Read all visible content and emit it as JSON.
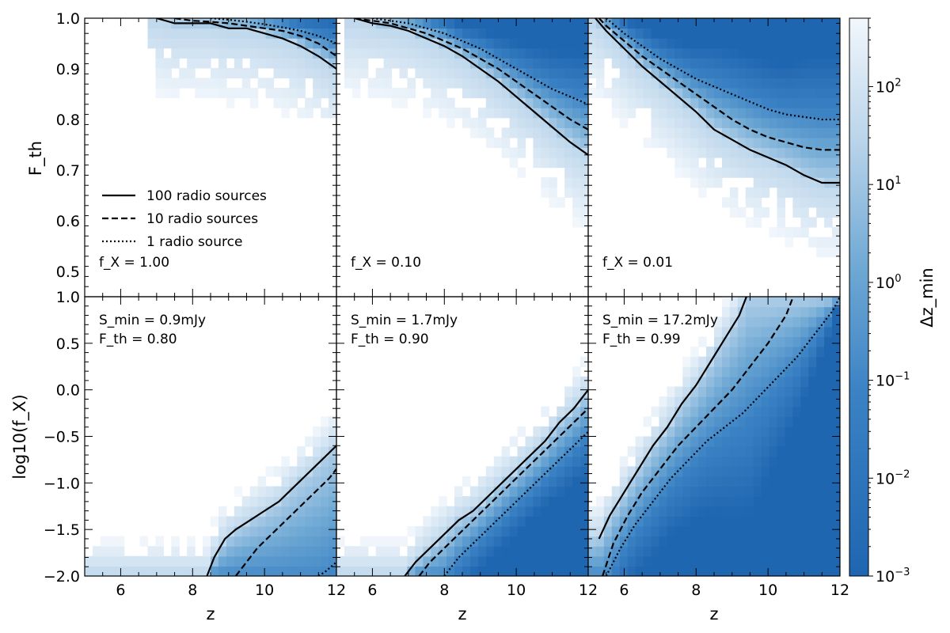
{
  "colors": {
    "colormap_low": "#1f66b1",
    "colormap_mid": "#6ea8d4",
    "colormap_high": "#f2f7fc",
    "line": "#000000"
  },
  "chart_data": {
    "type": "heatmap",
    "layout": "2x3 grid with shared colorbar",
    "colorbar": {
      "label": "Δz_min",
      "scale": "log",
      "range": [
        0.001,
        500
      ],
      "ticks": [
        0.001,
        0.01,
        0.1,
        1,
        10,
        100
      ],
      "tick_labels": [
        "10^-3",
        "10^-2",
        "10^-1",
        "10^0",
        "10^1",
        "10^2"
      ]
    },
    "legend": {
      "placement": "lower-left of top-left panel",
      "entries": [
        {
          "label": "100 radio sources",
          "style": "solid"
        },
        {
          "label": "10 radio sources",
          "style": "dashed"
        },
        {
          "label": "1 radio source",
          "style": "dotted"
        }
      ]
    },
    "top_row": {
      "ylabel": "F_th",
      "ylim": [
        0.45,
        1.0
      ],
      "yticks": [
        0.5,
        0.6,
        0.7,
        0.8,
        0.9,
        1.0
      ],
      "ytick_labels": [
        "0.5",
        "0.6",
        "0.7",
        "0.8",
        "0.9",
        "1.0"
      ],
      "panels": [
        {
          "annotation": "f_X = 1.00",
          "series": [
            {
              "name": "100 radio sources",
              "style": "solid",
              "x": [
                7.0,
                7.5,
                8.0,
                8.5,
                9.0,
                9.5,
                10.0,
                10.5,
                11.0,
                11.5,
                12.0
              ],
              "y": [
                1.0,
                0.99,
                0.99,
                0.99,
                0.98,
                0.98,
                0.97,
                0.96,
                0.945,
                0.925,
                0.9
              ]
            },
            {
              "name": "10 radio sources",
              "style": "dashed",
              "x": [
                7.5,
                8.0,
                8.5,
                9.0,
                9.5,
                10.0,
                10.5,
                11.0,
                11.5,
                12.0
              ],
              "y": [
                1.0,
                0.995,
                0.993,
                0.99,
                0.985,
                0.98,
                0.975,
                0.965,
                0.95,
                0.925
              ]
            },
            {
              "name": "1 radio source",
              "style": "dotted",
              "x": [
                8.5,
                9.0,
                9.5,
                10.0,
                10.5,
                11.0,
                11.5,
                12.0
              ],
              "y": [
                1.0,
                0.997,
                0.993,
                0.988,
                0.982,
                0.975,
                0.965,
                0.95
              ]
            }
          ]
        },
        {
          "annotation": "f_X = 0.10",
          "series": [
            {
              "name": "100 radio sources",
              "style": "solid",
              "x": [
                5.5,
                6.0,
                6.5,
                7.0,
                7.5,
                8.0,
                8.5,
                9.0,
                9.5,
                10.0,
                10.5,
                11.0,
                11.5,
                12.0
              ],
              "y": [
                1.0,
                0.99,
                0.985,
                0.975,
                0.96,
                0.945,
                0.925,
                0.9,
                0.875,
                0.845,
                0.815,
                0.785,
                0.755,
                0.73
              ]
            },
            {
              "name": "10 radio sources",
              "style": "dashed",
              "x": [
                5.5,
                6.0,
                6.5,
                7.0,
                7.5,
                8.0,
                8.5,
                9.0,
                9.5,
                10.0,
                10.5,
                11.0,
                11.5,
                12.0
              ],
              "y": [
                1.0,
                0.995,
                0.99,
                0.98,
                0.97,
                0.955,
                0.94,
                0.92,
                0.9,
                0.875,
                0.85,
                0.825,
                0.8,
                0.78
              ]
            },
            {
              "name": "1 radio source",
              "style": "dotted",
              "x": [
                6.0,
                6.5,
                7.0,
                7.5,
                8.0,
                8.5,
                9.0,
                9.5,
                10.0,
                10.5,
                11.0,
                11.5,
                12.0
              ],
              "y": [
                1.0,
                0.995,
                0.99,
                0.98,
                0.97,
                0.955,
                0.94,
                0.92,
                0.9,
                0.88,
                0.86,
                0.845,
                0.83
              ]
            }
          ]
        },
        {
          "annotation": "f_X = 0.01",
          "series": [
            {
              "name": "100 radio sources",
              "style": "solid",
              "x": [
                5.2,
                5.5,
                6.0,
                6.5,
                7.0,
                7.5,
                8.0,
                8.5,
                9.0,
                9.5,
                10.0,
                10.5,
                11.0,
                11.5,
                12.0
              ],
              "y": [
                1.0,
                0.975,
                0.94,
                0.905,
                0.875,
                0.845,
                0.815,
                0.78,
                0.76,
                0.74,
                0.725,
                0.71,
                0.69,
                0.675,
                0.675
              ]
            },
            {
              "name": "10 radio sources",
              "style": "dashed",
              "x": [
                5.3,
                5.5,
                6.0,
                6.5,
                7.0,
                7.5,
                8.0,
                8.5,
                9.0,
                9.5,
                10.0,
                10.5,
                11.0,
                11.5,
                12.0
              ],
              "y": [
                1.0,
                0.985,
                0.955,
                0.925,
                0.9,
                0.875,
                0.85,
                0.825,
                0.8,
                0.78,
                0.765,
                0.755,
                0.745,
                0.74,
                0.74
              ]
            },
            {
              "name": "1 radio source",
              "style": "dotted",
              "x": [
                5.5,
                6.0,
                6.5,
                7.0,
                7.5,
                8.0,
                8.5,
                9.0,
                9.5,
                10.0,
                10.5,
                11.0,
                11.5,
                12.0
              ],
              "y": [
                1.0,
                0.97,
                0.945,
                0.92,
                0.9,
                0.88,
                0.865,
                0.85,
                0.835,
                0.82,
                0.81,
                0.805,
                0.8,
                0.8
              ]
            }
          ]
        }
      ]
    },
    "bottom_row": {
      "xlabel": "z",
      "ylabel": "log10(f_X)",
      "xlim": [
        5,
        12
      ],
      "xticks": [
        6,
        8,
        10,
        12
      ],
      "xtick_labels": [
        "6",
        "8",
        "10",
        "12"
      ],
      "ylim": [
        -2.0,
        1.0
      ],
      "yticks": [
        -2.0,
        -1.5,
        -1.0,
        -0.5,
        0.0,
        0.5,
        1.0
      ],
      "ytick_labels": [
        "−2.0",
        "−1.5",
        "−1.0",
        "−0.5",
        "0.0",
        "0.5",
        "1.0"
      ],
      "panels": [
        {
          "annotation_line1": "S_min = 0.9mJy",
          "annotation_line2": "F_th = 0.80",
          "series": [
            {
              "name": "100 radio sources",
              "style": "solid",
              "x": [
                8.4,
                8.6,
                8.9,
                9.2,
                9.6,
                10.0,
                10.4,
                10.8,
                11.2,
                11.6,
                12.0
              ],
              "y": [
                -2.0,
                -1.8,
                -1.6,
                -1.5,
                -1.4,
                -1.3,
                -1.2,
                -1.05,
                -0.9,
                -0.75,
                -0.6
              ]
            },
            {
              "name": "10 radio sources",
              "style": "dashed",
              "x": [
                9.2,
                9.5,
                9.8,
                10.2,
                10.6,
                11.0,
                11.4,
                11.8,
                12.0
              ],
              "y": [
                -2.0,
                -1.85,
                -1.7,
                -1.55,
                -1.4,
                -1.25,
                -1.1,
                -0.95,
                -0.85
              ]
            },
            {
              "name": "1 radio source",
              "style": "dotted",
              "x": [
                11.5,
                11.7,
                12.0
              ],
              "y": [
                -2.0,
                -1.95,
                -1.85
              ]
            }
          ]
        },
        {
          "annotation_line1": "S_min = 1.7mJy",
          "annotation_line2": "F_th = 0.90",
          "series": [
            {
              "name": "100 radio sources",
              "style": "solid",
              "x": [
                6.9,
                7.2,
                7.6,
                8.0,
                8.4,
                8.8,
                9.2,
                9.6,
                10.0,
                10.4,
                10.8,
                11.2,
                11.6,
                12.0
              ],
              "y": [
                -2.0,
                -1.85,
                -1.7,
                -1.55,
                -1.4,
                -1.3,
                -1.15,
                -1.0,
                -0.85,
                -0.7,
                -0.55,
                -0.35,
                -0.2,
                0.0
              ]
            },
            {
              "name": "10 radio sources",
              "style": "dashed",
              "x": [
                7.3,
                7.6,
                8.0,
                8.4,
                8.8,
                9.2,
                9.6,
                10.0,
                10.4,
                10.8,
                11.2,
                11.6,
                12.0
              ],
              "y": [
                -2.0,
                -1.85,
                -1.7,
                -1.55,
                -1.4,
                -1.25,
                -1.1,
                -0.95,
                -0.8,
                -0.65,
                -0.5,
                -0.35,
                -0.2
              ]
            },
            {
              "name": "1 radio source",
              "style": "dotted",
              "x": [
                8.0,
                8.4,
                8.8,
                9.2,
                9.6,
                10.0,
                10.4,
                10.8,
                11.2,
                11.6,
                12.0
              ],
              "y": [
                -2.0,
                -1.8,
                -1.65,
                -1.5,
                -1.35,
                -1.2,
                -1.05,
                -0.9,
                -0.75,
                -0.6,
                -0.45
              ]
            }
          ]
        },
        {
          "annotation_line1": "S_min = 17.2mJy",
          "annotation_line2": "F_th = 0.99",
          "series": [
            {
              "name": "100 radio sources",
              "style": "solid",
              "x": [
                5.3,
                5.6,
                6.0,
                6.4,
                6.8,
                7.2,
                7.6,
                8.0,
                8.4,
                8.8,
                9.2,
                9.4
              ],
              "y": [
                -1.6,
                -1.35,
                -1.1,
                -0.85,
                -0.6,
                -0.4,
                -0.15,
                0.05,
                0.3,
                0.55,
                0.8,
                1.0
              ]
            },
            {
              "name": "10 radio sources",
              "style": "dashed",
              "x": [
                5.4,
                5.7,
                6.1,
                6.5,
                7.0,
                7.5,
                8.0,
                8.5,
                9.0,
                9.5,
                10.0,
                10.5,
                10.7
              ],
              "y": [
                -2.0,
                -1.65,
                -1.35,
                -1.1,
                -0.85,
                -0.6,
                -0.4,
                -0.2,
                0.0,
                0.25,
                0.5,
                0.8,
                1.0
              ]
            },
            {
              "name": "1 radio source",
              "style": "dotted",
              "x": [
                5.5,
                5.9,
                6.3,
                6.8,
                7.3,
                7.8,
                8.3,
                8.8,
                9.3,
                9.8,
                10.3,
                10.8,
                11.3,
                11.8,
                12.0
              ],
              "y": [
                -2.0,
                -1.7,
                -1.45,
                -1.2,
                -0.95,
                -0.75,
                -0.55,
                -0.4,
                -0.25,
                -0.05,
                0.15,
                0.35,
                0.6,
                0.85,
                1.0
              ]
            }
          ]
        }
      ]
    }
  }
}
